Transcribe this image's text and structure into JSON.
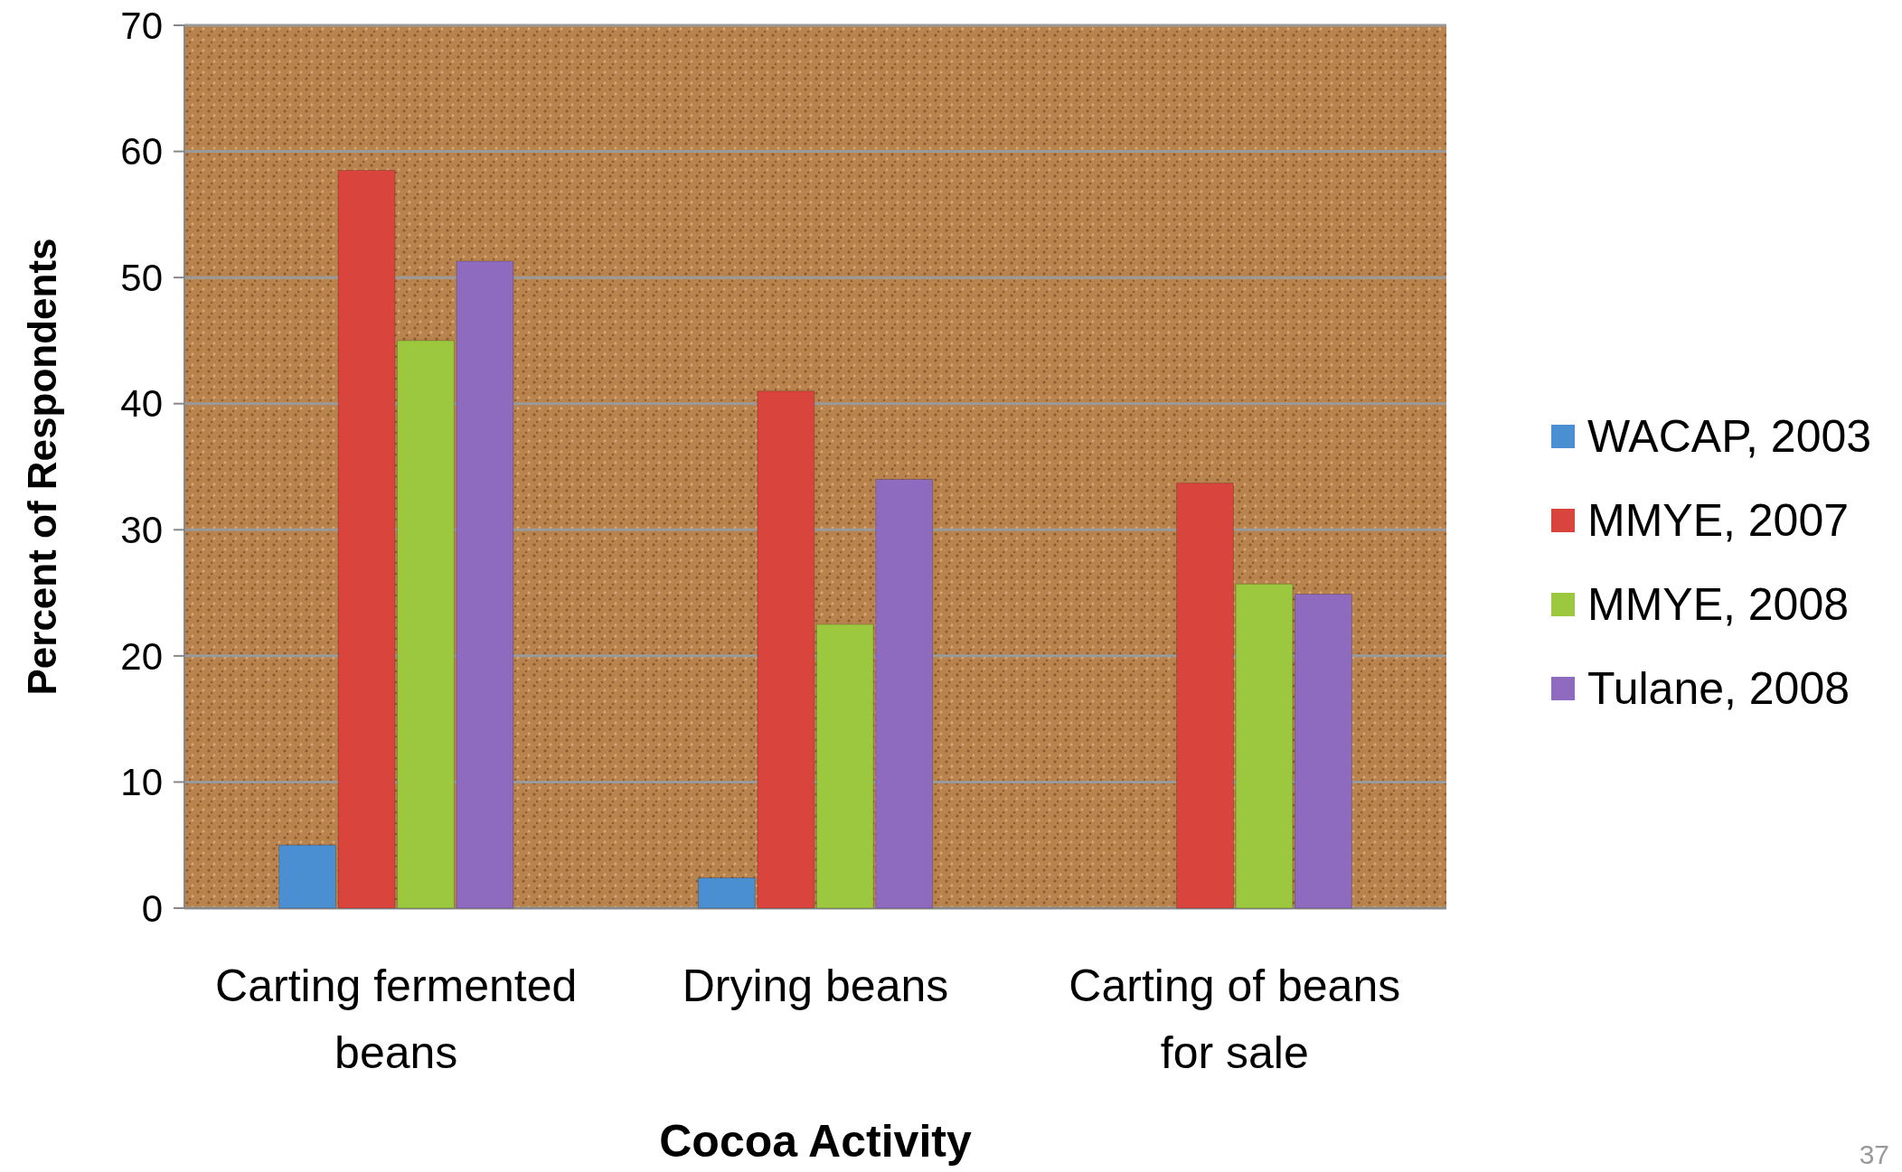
{
  "chart_data": {
    "type": "bar",
    "xlabel": "Cocoa Activity",
    "ylabel": "Percent of Respondents",
    "categories": [
      "Carting fermented beans",
      "Drying beans",
      "Carting of beans for sale"
    ],
    "series": [
      {
        "name": "WACAP, 2003",
        "color": "#4a8fd1",
        "values": [
          5,
          2.4,
          null
        ]
      },
      {
        "name": "MMYE, 2007",
        "color": "#d9443c",
        "values": [
          58.5,
          41,
          33.7
        ]
      },
      {
        "name": "MMYE, 2008",
        "color": "#9bc83f",
        "values": [
          45,
          22.5,
          25.7
        ]
      },
      {
        "name": "Tulane, 2008",
        "color": "#8f6bbf",
        "values": [
          51.3,
          34,
          24.9
        ]
      }
    ],
    "ylim": [
      0,
      70
    ],
    "yticks": [
      0,
      10,
      20,
      30,
      40,
      50,
      60,
      70
    ],
    "grid": "y",
    "legend": "right",
    "annotations": [
      "37"
    ]
  }
}
